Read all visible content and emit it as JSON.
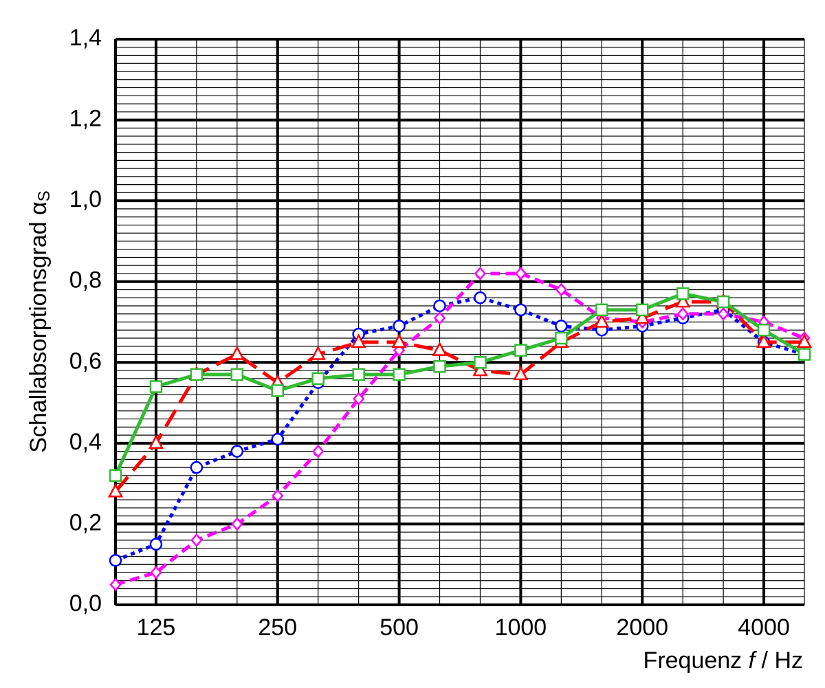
{
  "chart_data": {
    "type": "line",
    "y_label": "Schallabsorptionsgrad",
    "y_label_symbol": "α",
    "y_label_subscript": "S",
    "x_label": [
      "Frequenz",
      "f",
      "/ Hz"
    ],
    "categories": [
      null,
      "125",
      null,
      null,
      "250",
      null,
      null,
      "500",
      null,
      null,
      "1000",
      null,
      null,
      "2000",
      null,
      null,
      "4000",
      null
    ],
    "ylim": [
      0,
      1.4
    ],
    "yticks": [
      {
        "value": 0,
        "label": "0,0"
      },
      {
        "value": 0.2,
        "label": "0,2"
      },
      {
        "value": 0.4,
        "label": "0,4"
      },
      {
        "value": 0.6,
        "label": "0,6"
      },
      {
        "value": 0.8,
        "label": "0,8"
      },
      {
        "value": 1.0,
        "label": "1,0"
      },
      {
        "value": 1.2,
        "label": "1,2"
      },
      {
        "value": 1.4,
        "label": "1,4"
      }
    ],
    "grid": true,
    "series": [
      {
        "color": "#0000ff",
        "marker": "circle",
        "dash": "dotted",
        "values": [
          0.11,
          0.15,
          0.34,
          0.38,
          0.41,
          0.55,
          0.67,
          0.69,
          0.74,
          0.76,
          0.73,
          0.69,
          0.68,
          0.69,
          0.71,
          0.73,
          0.65,
          0.62
        ]
      },
      {
        "color": "#ff00ff",
        "marker": "diamond",
        "dash": "dashed",
        "values": [
          0.05,
          0.08,
          0.16,
          0.2,
          0.27,
          0.38,
          0.51,
          0.63,
          0.71,
          0.82,
          0.82,
          0.78,
          0.71,
          0.7,
          0.72,
          0.72,
          0.7,
          0.66
        ]
      },
      {
        "color": "#ff0000",
        "marker": "triangle",
        "dash": "long-dash",
        "values": [
          0.28,
          0.4,
          0.57,
          0.62,
          0.55,
          0.62,
          0.65,
          0.65,
          0.63,
          0.58,
          0.57,
          0.65,
          0.7,
          0.71,
          0.75,
          0.75,
          0.65,
          0.65
        ]
      },
      {
        "color": "#33bb33",
        "marker": "square",
        "dash": "solid",
        "values": [
          0.32,
          0.54,
          0.57,
          0.57,
          0.53,
          0.56,
          0.57,
          0.57,
          0.59,
          0.6,
          0.63,
          0.66,
          0.73,
          0.73,
          0.77,
          0.75,
          0.68,
          0.62
        ]
      }
    ]
  }
}
